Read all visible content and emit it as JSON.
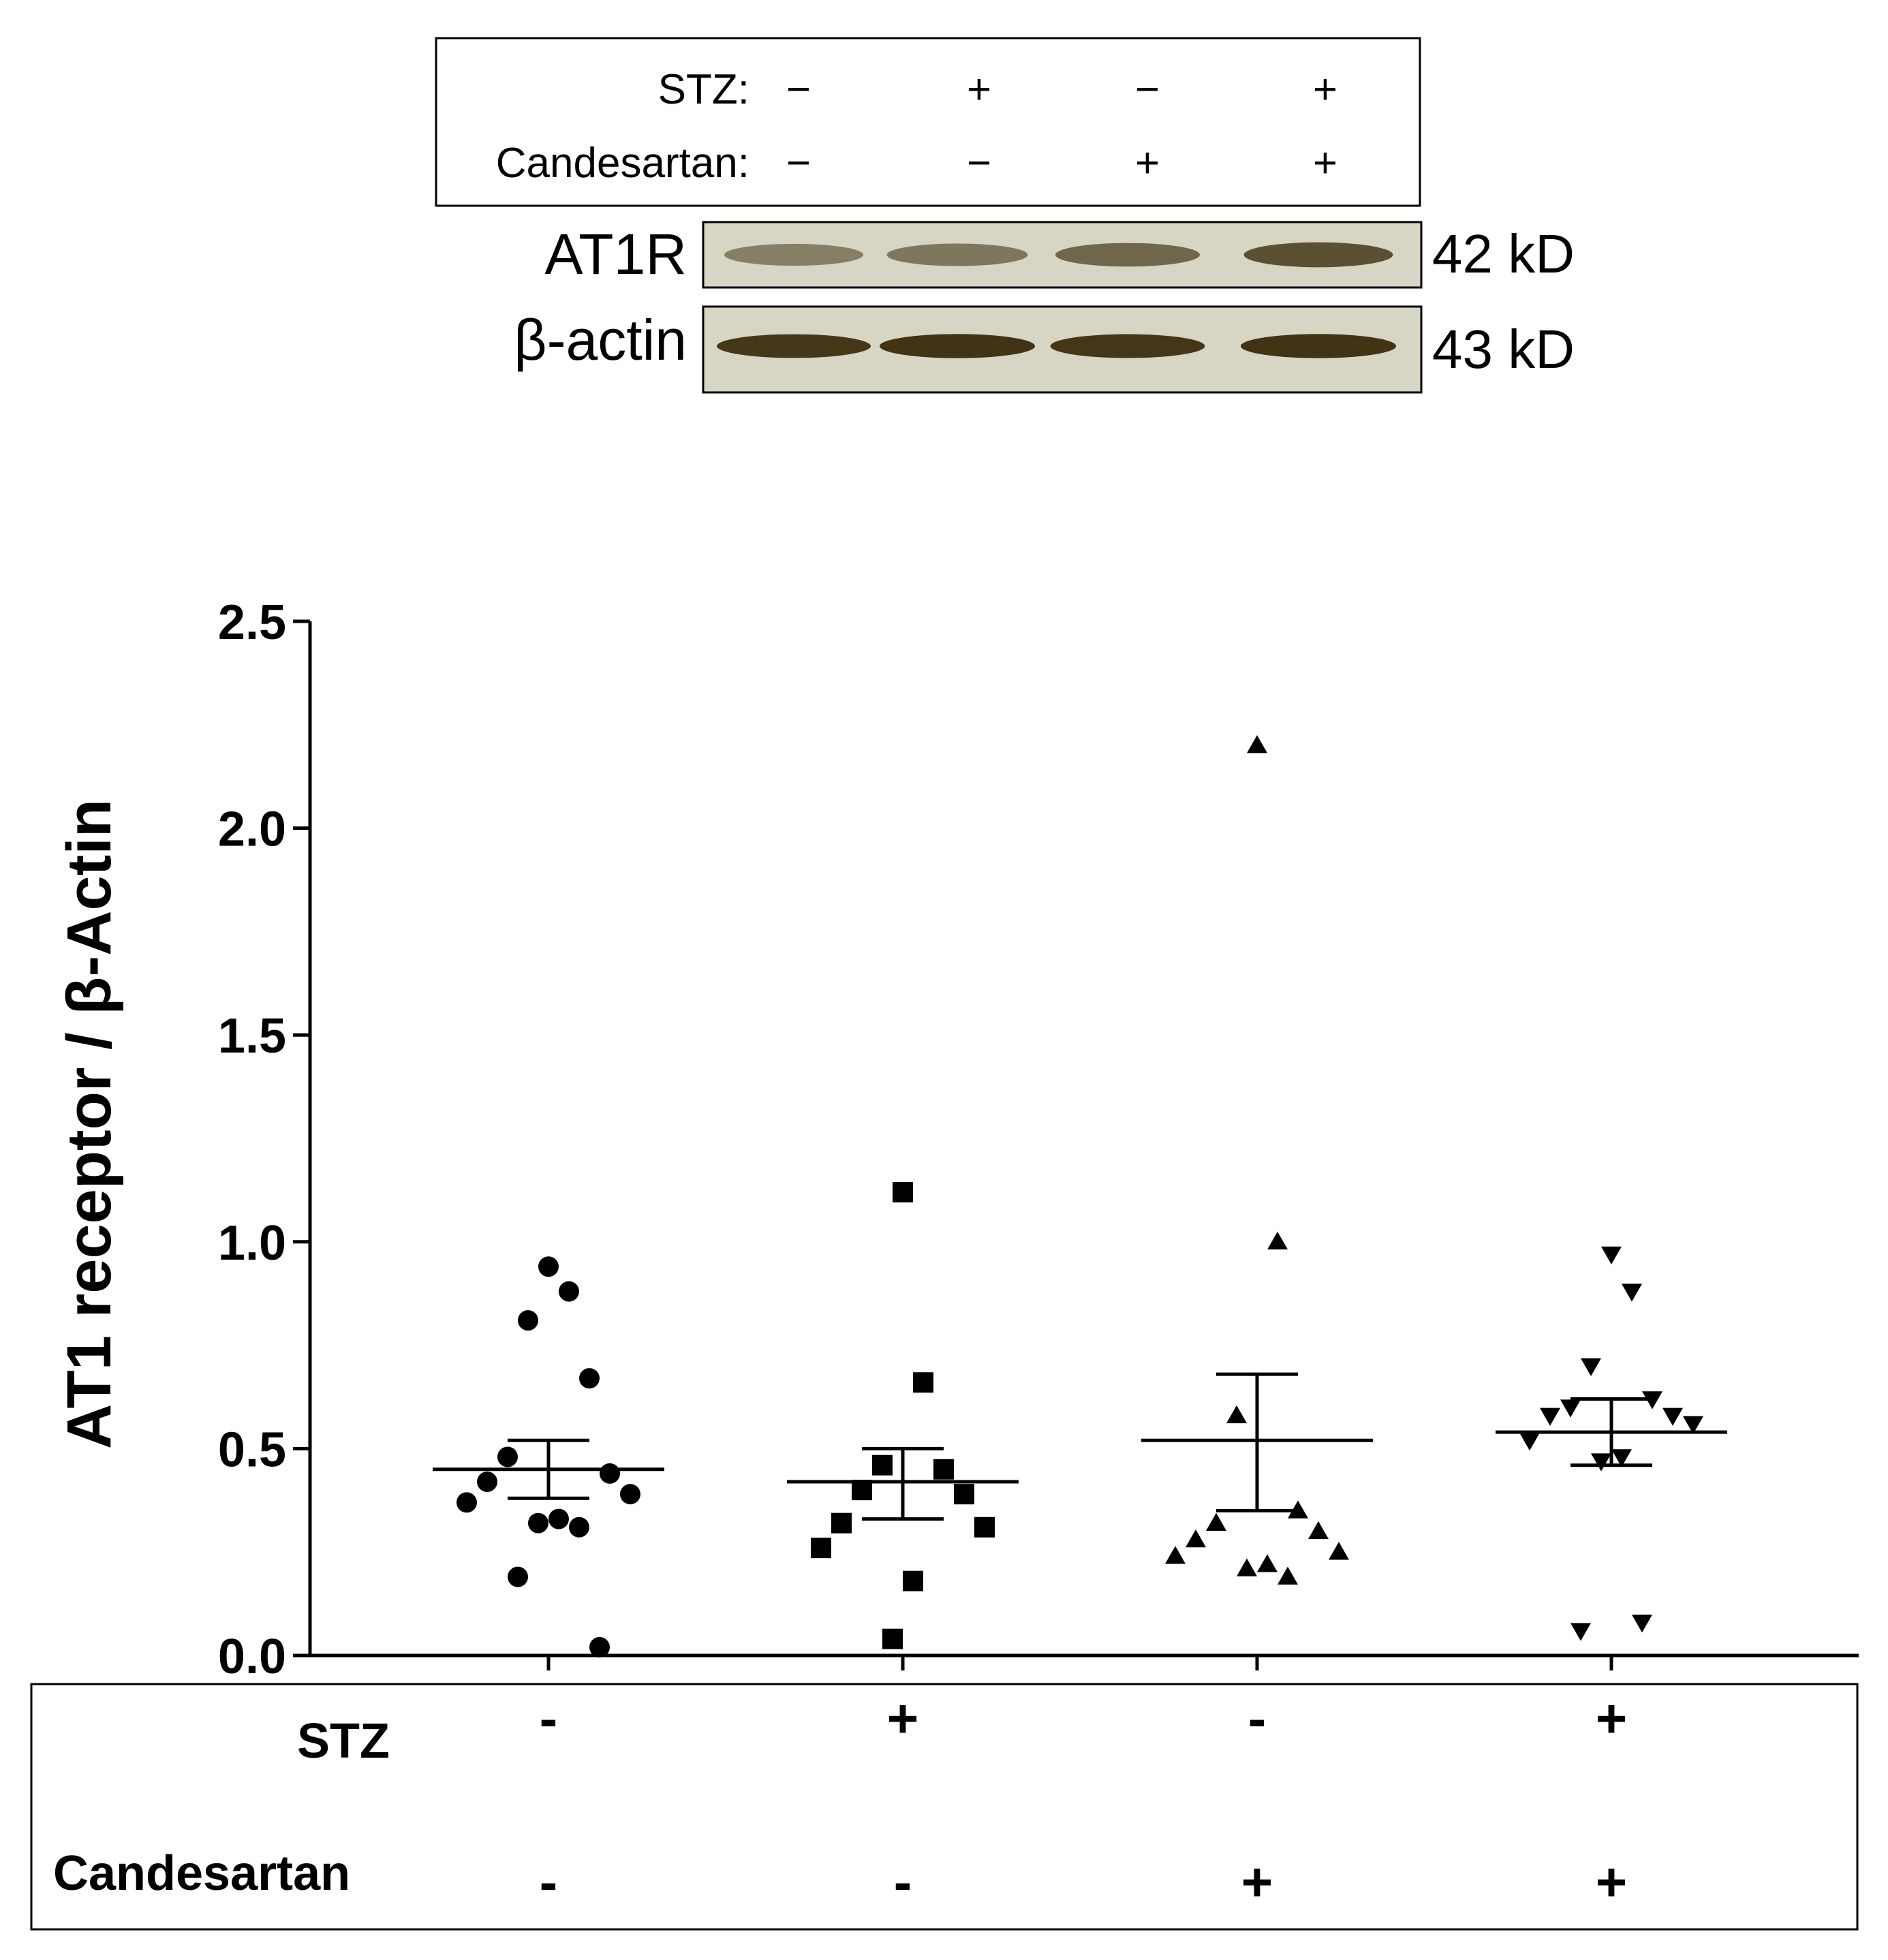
{
  "blot": {
    "stz_label": "STZ:",
    "candesartan_label": "Candesartan:",
    "stz_signs": [
      "−",
      "+",
      "−",
      "+"
    ],
    "candesartan_signs": [
      "−",
      "−",
      "+",
      "+"
    ],
    "bands": [
      {
        "name": "AT1R",
        "size": "42 kD",
        "intensities": [
          0.35,
          0.42,
          0.55,
          0.72
        ]
      },
      {
        "name": "β-actin",
        "size": "43 kD",
        "intensities": [
          0.9,
          0.95,
          0.92,
          0.95
        ]
      }
    ],
    "band_color": "#3a2c0c",
    "membrane_color": "#d7d5c4"
  },
  "chart_data": {
    "type": "scatter",
    "ylabel": "AT1 receptor / β-Actin",
    "ylim": [
      0,
      2.5
    ],
    "yticks": [
      "0.0",
      "0.5",
      "1.0",
      "1.5",
      "2.0",
      "2.5"
    ],
    "yticks_values": [
      0,
      0.5,
      1.0,
      1.5,
      2.0,
      2.5
    ],
    "stz_label": "STZ",
    "candesartan_label": "Candesartan",
    "series": [
      {
        "name": "STZ - / Candesartan -",
        "marker": "circle",
        "stz": "-",
        "candesartan": "-",
        "values": [
          0.94,
          0.88,
          0.81,
          0.67,
          0.48,
          0.44,
          0.42,
          0.39,
          0.37,
          0.33,
          0.32,
          0.31,
          0.19,
          0.02
        ],
        "mean": 0.45,
        "sem_upper": 0.52,
        "sem_lower": 0.38
      },
      {
        "name": "STZ + / Candesartan -",
        "marker": "square",
        "stz": "+",
        "candesartan": "-",
        "values": [
          1.12,
          0.66,
          0.46,
          0.45,
          0.4,
          0.39,
          0.32,
          0.31,
          0.26,
          0.18,
          0.04
        ],
        "mean": 0.42,
        "sem_upper": 0.5,
        "sem_lower": 0.33
      },
      {
        "name": "STZ - / Candesartan +",
        "marker": "triangle-up",
        "stz": "-",
        "candesartan": "+",
        "values": [
          2.2,
          1.0,
          0.58,
          0.35,
          0.32,
          0.3,
          0.28,
          0.25,
          0.24,
          0.22,
          0.21,
          0.19
        ],
        "mean": 0.52,
        "sem_upper": 0.68,
        "sem_lower": 0.35
      },
      {
        "name": "STZ + / Candesartan +",
        "marker": "triangle-down",
        "stz": "+",
        "candesartan": "+",
        "values": [
          0.97,
          0.88,
          0.7,
          0.62,
          0.6,
          0.58,
          0.58,
          0.56,
          0.52,
          0.48,
          0.47,
          0.08,
          0.06
        ],
        "mean": 0.54,
        "sem_upper": 0.62,
        "sem_lower": 0.46
      }
    ]
  }
}
